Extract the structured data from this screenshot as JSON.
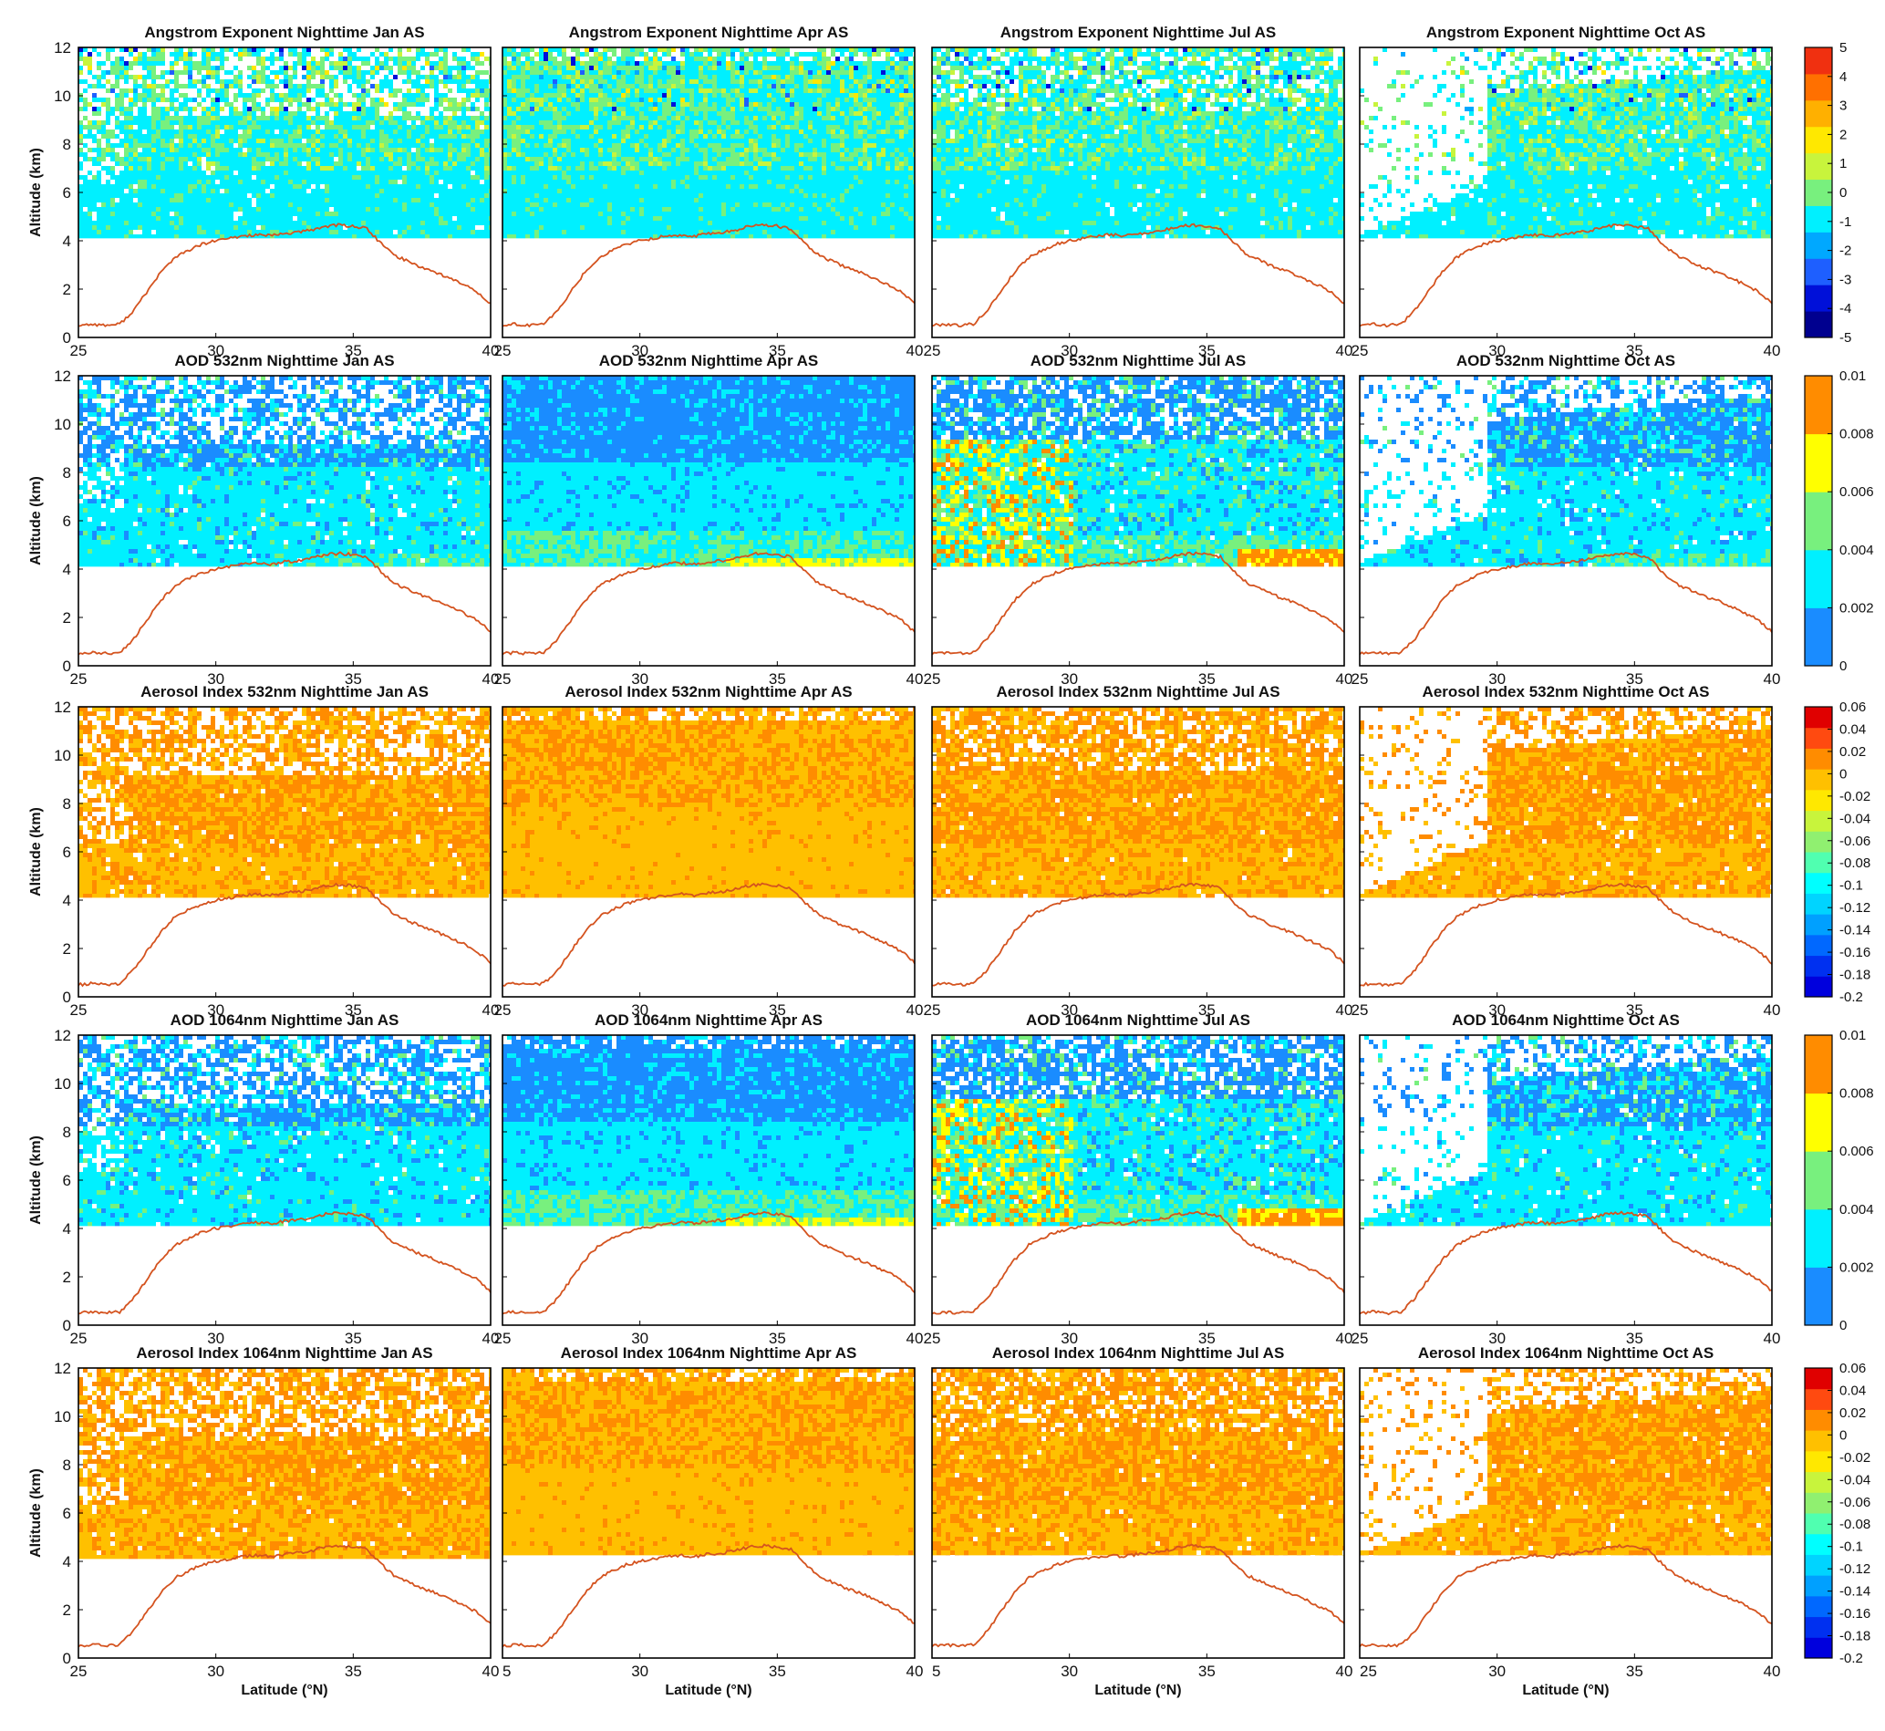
{
  "figure": {
    "rows": [
      {
        "variable": "Angstrom Exponent",
        "colorbar": [
          "5",
          "4",
          "3",
          "2",
          "1",
          "0",
          "-1",
          "-2",
          "-3",
          "-4",
          "-5"
        ],
        "palette": "ae"
      },
      {
        "variable": "AOD 532nm",
        "colorbar": [
          "0.01",
          "0.008",
          "0.006",
          "0.004",
          "0.002",
          "0"
        ],
        "palette": "aod"
      },
      {
        "variable": "Aerosol Index 532nm",
        "colorbar": [
          "0.06",
          "0.04",
          "0.02",
          "0",
          "-0.02",
          "-0.04",
          "-0.06",
          "-0.08",
          "-0.1",
          "-0.12",
          "-0.14",
          "-0.16",
          "-0.18",
          "-0.2"
        ],
        "palette": "ai"
      },
      {
        "variable": "AOD 1064nm",
        "colorbar": [
          "0.01",
          "0.008",
          "0.006",
          "0.004",
          "0.002",
          "0"
        ],
        "palette": "aod"
      },
      {
        "variable": "Aerosol Index 1064nm",
        "colorbar": [
          "0.06",
          "0.04",
          "0.02",
          "0",
          "-0.02",
          "-0.04",
          "-0.06",
          "-0.08",
          "-0.1",
          "-0.12",
          "-0.14",
          "-0.16",
          "-0.18",
          "-0.2"
        ],
        "palette": "ai"
      }
    ],
    "months": [
      "Jan",
      "Apr",
      "Jul",
      "Oct"
    ]
  },
  "chart_data": {
    "type": "heatmap",
    "panels": [
      {
        "title": "Angstrom Exponent Nighttime Jan AS"
      },
      {
        "title": "Angstrom Exponent Nighttime Apr AS"
      },
      {
        "title": "Angstrom Exponent Nighttime Jul AS"
      },
      {
        "title": "Angstrom Exponent Nighttime Oct AS"
      },
      {
        "title": "AOD 532nm Nighttime Jan AS"
      },
      {
        "title": "AOD 532nm Nighttime Apr AS"
      },
      {
        "title": "AOD 532nm Nighttime Jul AS"
      },
      {
        "title": "AOD 532nm Nighttime Oct AS"
      },
      {
        "title": "Aerosol Index 532nm Nighttime Jan AS"
      },
      {
        "title": "Aerosol Index 532nm Nighttime Apr AS"
      },
      {
        "title": "Aerosol Index 532nm Nighttime Jul AS"
      },
      {
        "title": "Aerosol Index 532nm Nighttime Oct AS"
      },
      {
        "title": "AOD 1064nm Nighttime Jan AS"
      },
      {
        "title": "AOD 1064nm Nighttime Apr AS"
      },
      {
        "title": "AOD 1064nm Nighttime Jul AS"
      },
      {
        "title": "AOD 1064nm Nighttime Oct AS"
      },
      {
        "title": "Aerosol Index 1064nm Nighttime Jan AS"
      },
      {
        "title": "Aerosol Index 1064nm Nighttime Apr AS"
      },
      {
        "title": "Aerosol Index 1064nm Nighttime Jul AS"
      },
      {
        "title": "Aerosol Index 1064nm Nighttime Oct AS"
      }
    ],
    "xlabel": "Latitude (°N)",
    "ylabel": "Altitude (km)",
    "xlim": [
      25,
      40
    ],
    "ylim": [
      0,
      12
    ],
    "xticks": [
      "25",
      "30",
      "35",
      "40"
    ],
    "yticks": [
      "0",
      "2",
      "4",
      "6",
      "8",
      "10",
      "12"
    ],
    "data_floor_km": 4.1,
    "terrain": {
      "name": "surface elevation",
      "color": "#d4531f",
      "x": [
        25,
        25.5,
        26,
        26.5,
        27,
        27.5,
        28,
        28.5,
        29,
        29.5,
        30,
        30.5,
        31,
        31.5,
        32,
        32.5,
        33,
        33.5,
        34,
        34.5,
        35,
        35.5,
        36,
        36.5,
        37,
        37.5,
        38,
        38.5,
        39,
        39.5,
        40
      ],
      "y": [
        0.5,
        0.55,
        0.5,
        0.55,
        1.1,
        1.9,
        2.7,
        3.3,
        3.6,
        3.85,
        4.0,
        4.1,
        4.2,
        4.25,
        4.2,
        4.3,
        4.35,
        4.45,
        4.6,
        4.65,
        4.6,
        4.5,
        3.9,
        3.4,
        3.15,
        2.9,
        2.7,
        2.45,
        2.2,
        1.9,
        1.4
      ]
    },
    "grid": false
  },
  "colors": {
    "ae": [
      "#00008f",
      "#0010d9",
      "#1e5fff",
      "#00a8ff",
      "#00f0ff",
      "#78f07e",
      "#c8f43c",
      "#ffe800",
      "#ffb000",
      "#ff7000",
      "#f03010"
    ],
    "aod": [
      "#1a8cff",
      "#00f0ff",
      "#78f07e",
      "#ffff00",
      "#ff8c00"
    ],
    "ai": [
      "#0000dd",
      "#0030f0",
      "#0068ff",
      "#00a0ff",
      "#00d4ff",
      "#00ffff",
      "#50ffb0",
      "#90f070",
      "#c8f43c",
      "#ffe800",
      "#ffc000",
      "#ff8c00",
      "#ff4a10",
      "#e00000"
    ]
  }
}
